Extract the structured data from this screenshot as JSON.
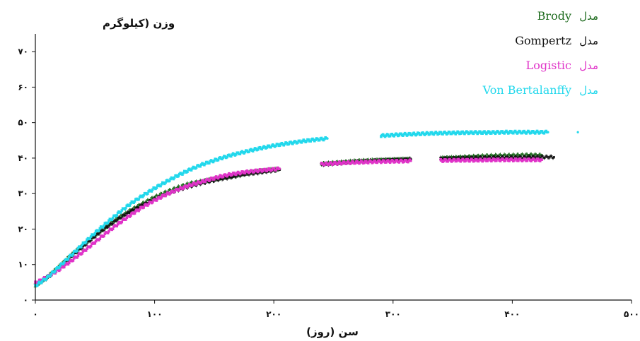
{
  "chart_data": {
    "type": "scatter",
    "ylabel": "وزن (کیلوگرم",
    "xlabel": "سن (روز)",
    "xlim": [
      0,
      500
    ],
    "ylim": [
      0,
      75
    ],
    "x_ticks": [
      0,
      100,
      200,
      300,
      400,
      500
    ],
    "x_tick_labels": [
      "۰",
      "۱۰۰",
      "۲۰۰",
      "۳۰۰",
      "۴۰۰",
      "۵۰۰"
    ],
    "y_ticks": [
      0,
      10,
      20,
      30,
      40,
      50,
      60,
      70
    ],
    "y_tick_labels": [
      "۰",
      "۱۰",
      "۲۰",
      "۳۰",
      "۴۰",
      "۵۰",
      "۶۰",
      "۷۰"
    ],
    "legend_position": "top-right",
    "legend_prefix": "مدل",
    "series": [
      {
        "name": "Brody",
        "color": "#1e6b1e",
        "marker": "plus",
        "points": [
          [
            0,
            4
          ],
          [
            10,
            6.5
          ],
          [
            20,
            9.5
          ],
          [
            30,
            12.7
          ],
          [
            40,
            15.5
          ],
          [
            50,
            18.3
          ],
          [
            60,
            20.8
          ],
          [
            70,
            23.2
          ],
          [
            80,
            25.3
          ],
          [
            90,
            27.2
          ],
          [
            100,
            29
          ],
          [
            110,
            30.5
          ],
          [
            120,
            31.8
          ],
          [
            130,
            32.9
          ],
          [
            140,
            33.5
          ],
          [
            155,
            34.4
          ],
          [
            165,
            35
          ],
          [
            175,
            35.6
          ],
          [
            185,
            36.2
          ],
          [
            195,
            36.6
          ],
          [
            205,
            37
          ],
          [
            240,
            38.4
          ],
          [
            255,
            38.8
          ],
          [
            270,
            39.2
          ],
          [
            285,
            39.4
          ],
          [
            300,
            39.6
          ],
          [
            315,
            39.7
          ],
          [
            340,
            40
          ],
          [
            355,
            40.2
          ],
          [
            370,
            40.5
          ],
          [
            385,
            40.7
          ],
          [
            400,
            40.8
          ],
          [
            415,
            40.9
          ],
          [
            425,
            40.8
          ]
        ]
      },
      {
        "name": "Gompertz",
        "color": "#111111",
        "marker": "plus",
        "points": [
          [
            0,
            4.2
          ],
          [
            10,
            6.2
          ],
          [
            20,
            9
          ],
          [
            30,
            12.2
          ],
          [
            40,
            15.1
          ],
          [
            50,
            18
          ],
          [
            60,
            20.6
          ],
          [
            70,
            23
          ],
          [
            80,
            25
          ],
          [
            90,
            26.8
          ],
          [
            100,
            28.4
          ],
          [
            110,
            29.9
          ],
          [
            120,
            31.1
          ],
          [
            130,
            32.1
          ],
          [
            140,
            33
          ],
          [
            155,
            34.1
          ],
          [
            165,
            34.7
          ],
          [
            175,
            35.4
          ],
          [
            185,
            35.8
          ],
          [
            195,
            36.3
          ],
          [
            205,
            36.7
          ],
          [
            240,
            38.2
          ],
          [
            255,
            38.6
          ],
          [
            270,
            39
          ],
          [
            285,
            39.3
          ],
          [
            300,
            39.5
          ],
          [
            315,
            39.7
          ],
          [
            340,
            39.9
          ],
          [
            355,
            40
          ],
          [
            370,
            40.1
          ],
          [
            385,
            40.2
          ],
          [
            400,
            40.2
          ],
          [
            415,
            40.3
          ],
          [
            435,
            40.3
          ]
        ]
      },
      {
        "name": "Logistic",
        "color": "#e033c8",
        "marker": "square",
        "points": [
          [
            0,
            4.8
          ],
          [
            10,
            6.5
          ],
          [
            20,
            8.6
          ],
          [
            30,
            11
          ],
          [
            40,
            13.6
          ],
          [
            50,
            16.3
          ],
          [
            60,
            19
          ],
          [
            70,
            21.6
          ],
          [
            80,
            24
          ],
          [
            90,
            26.2
          ],
          [
            100,
            28.1
          ],
          [
            110,
            29.8
          ],
          [
            120,
            31.2
          ],
          [
            130,
            32.4
          ],
          [
            140,
            33.4
          ],
          [
            155,
            34.8
          ],
          [
            165,
            35.5
          ],
          [
            175,
            36
          ],
          [
            185,
            36.4
          ],
          [
            195,
            36.7
          ],
          [
            205,
            37
          ],
          [
            240,
            38.3
          ],
          [
            255,
            38.6
          ],
          [
            270,
            38.8
          ],
          [
            285,
            39
          ],
          [
            300,
            39.1
          ],
          [
            315,
            39.2
          ],
          [
            340,
            39.3
          ],
          [
            355,
            39.4
          ],
          [
            370,
            39.4
          ],
          [
            385,
            39.5
          ],
          [
            400,
            39.5
          ],
          [
            415,
            39.5
          ],
          [
            425,
            39.5
          ]
        ]
      },
      {
        "name": "Von Bertalanffy",
        "color": "#22d8ec",
        "marker": "square",
        "points": [
          [
            0,
            4
          ],
          [
            10,
            6.3
          ],
          [
            20,
            9.4
          ],
          [
            30,
            12.6
          ],
          [
            40,
            15.8
          ],
          [
            50,
            18.9
          ],
          [
            60,
            21.8
          ],
          [
            70,
            24.6
          ],
          [
            80,
            27.2
          ],
          [
            90,
            29.4
          ],
          [
            100,
            31.5
          ],
          [
            110,
            33.4
          ],
          [
            120,
            35.2
          ],
          [
            130,
            36.8
          ],
          [
            140,
            38.2
          ],
          [
            155,
            39.9
          ],
          [
            165,
            40.9
          ],
          [
            175,
            41.7
          ],
          [
            185,
            42.5
          ],
          [
            195,
            43.2
          ],
          [
            205,
            43.8
          ],
          [
            215,
            44.3
          ],
          [
            225,
            44.8
          ],
          [
            235,
            45.2
          ],
          [
            245,
            45.5
          ],
          [
            290,
            46.3
          ],
          [
            305,
            46.6
          ],
          [
            320,
            46.8
          ],
          [
            335,
            47
          ],
          [
            350,
            47.1
          ],
          [
            365,
            47.2
          ],
          [
            380,
            47.2
          ],
          [
            395,
            47.3
          ],
          [
            410,
            47.3
          ],
          [
            430,
            47.3
          ],
          [
            455,
            47.3
          ]
        ]
      }
    ]
  }
}
